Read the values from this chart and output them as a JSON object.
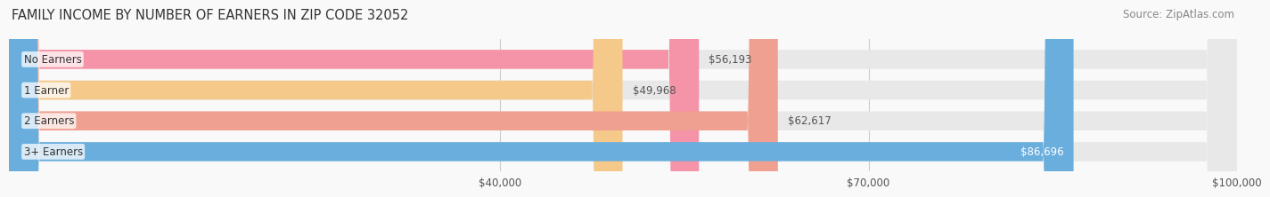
{
  "title": "FAMILY INCOME BY NUMBER OF EARNERS IN ZIP CODE 32052",
  "source": "Source: ZipAtlas.com",
  "categories": [
    "No Earners",
    "1 Earner",
    "2 Earners",
    "3+ Earners"
  ],
  "values": [
    56193,
    49968,
    62617,
    86696
  ],
  "bar_colors": [
    "#f593a8",
    "#f5c98a",
    "#f0a090",
    "#6aaede"
  ],
  "bar_bg_color": "#e8e8e8",
  "label_colors": [
    "#444444",
    "#444444",
    "#444444",
    "#ffffff"
  ],
  "xmin": 0,
  "xmax": 100000,
  "xticks": [
    40000,
    70000,
    100000
  ],
  "xtick_labels": [
    "$40,000",
    "$70,000",
    "$100,000"
  ],
  "bar_height": 0.62,
  "title_fontsize": 10.5,
  "label_fontsize": 8.5,
  "tick_fontsize": 8.5,
  "source_fontsize": 8.5,
  "background_color": "#f9f9f9"
}
